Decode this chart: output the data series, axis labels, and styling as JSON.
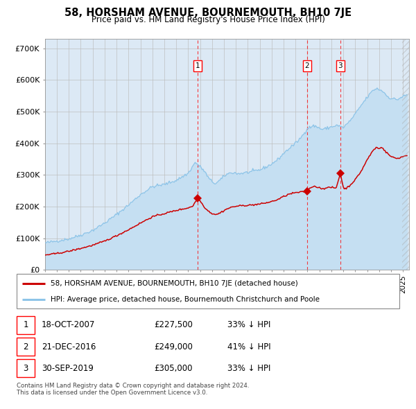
{
  "title": "58, HORSHAM AVENUE, BOURNEMOUTH, BH10 7JE",
  "subtitle": "Price paid vs. HM Land Registry's House Price Index (HPI)",
  "background_color": "#ffffff",
  "plot_bg_color": "#dce9f5",
  "hpi_color": "#8dc4e8",
  "hpi_fill_color": "#c5dff2",
  "price_color": "#cc0000",
  "ylabel_ticks": [
    "£0",
    "£100K",
    "£200K",
    "£300K",
    "£400K",
    "£500K",
    "£600K",
    "£700K"
  ],
  "ytick_values": [
    0,
    100000,
    200000,
    300000,
    400000,
    500000,
    600000,
    700000
  ],
  "ylim": [
    0,
    730000
  ],
  "xlim_start": 1995.0,
  "xlim_end": 2025.5,
  "transactions": [
    {
      "date": 2007.8,
      "price": 227500,
      "label": "1"
    },
    {
      "date": 2016.97,
      "price": 249000,
      "label": "2"
    },
    {
      "date": 2019.75,
      "price": 305000,
      "label": "3"
    }
  ],
  "legend_line1": "58, HORSHAM AVENUE, BOURNEMOUTH, BH10 7JE (detached house)",
  "legend_line2": "HPI: Average price, detached house, Bournemouth Christchurch and Poole",
  "table_rows": [
    {
      "num": "1",
      "date": "18-OCT-2007",
      "price": "£227,500",
      "change": "33% ↓ HPI"
    },
    {
      "num": "2",
      "date": "21-DEC-2016",
      "price": "£249,000",
      "change": "41% ↓ HPI"
    },
    {
      "num": "3",
      "date": "30-SEP-2019",
      "price": "£305,000",
      "change": "33% ↓ HPI"
    }
  ],
  "footer": "Contains HM Land Registry data © Crown copyright and database right 2024.\nThis data is licensed under the Open Government Licence v3.0."
}
